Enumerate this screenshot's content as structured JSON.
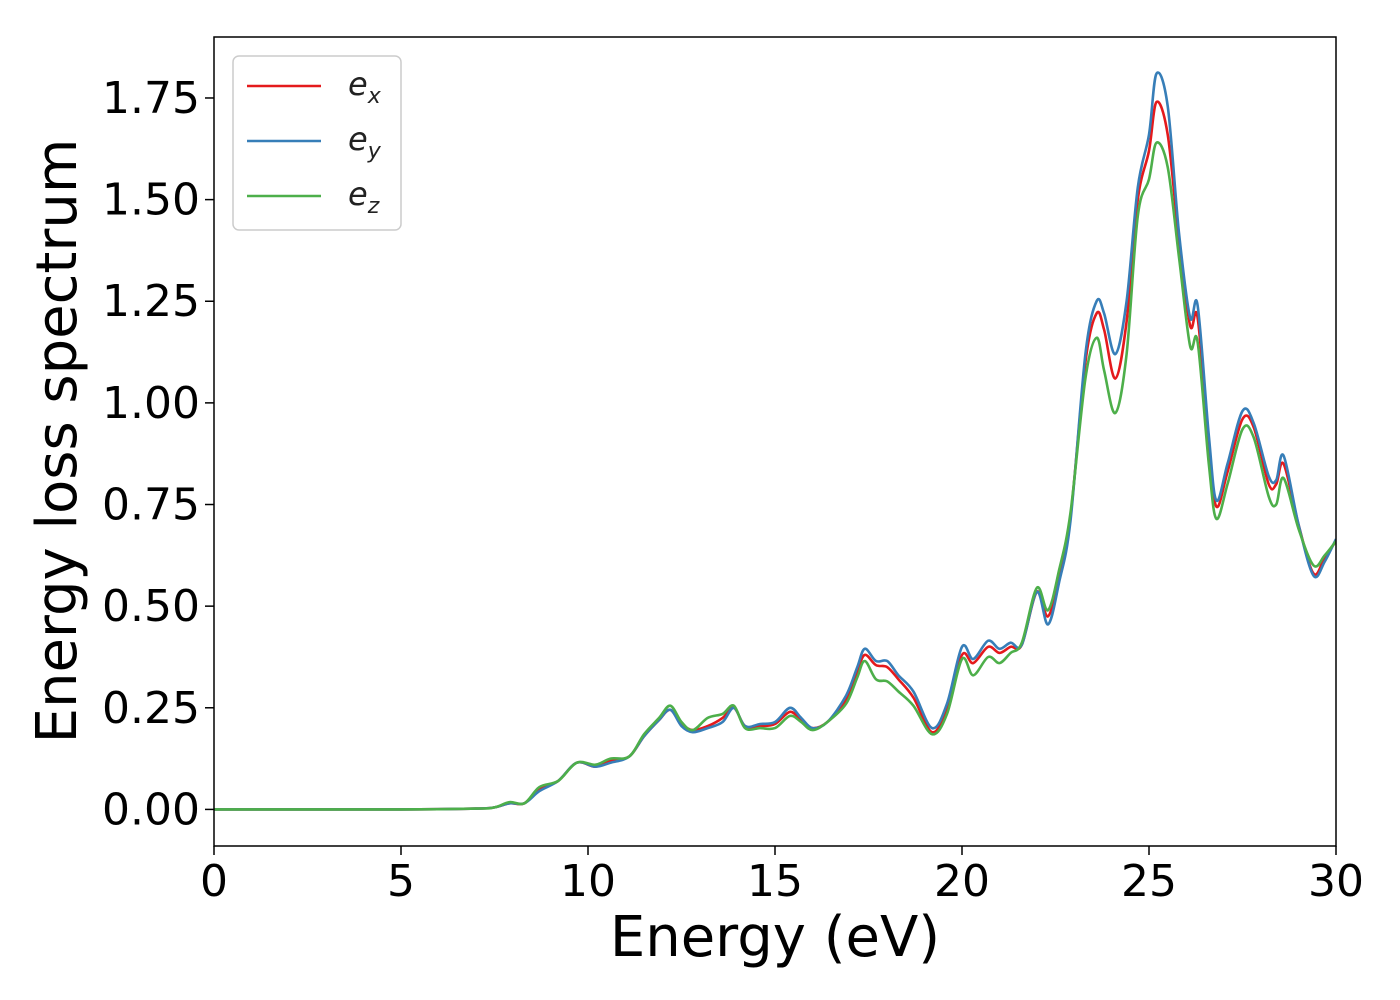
{
  "chart_data": {
    "type": "line",
    "title": "",
    "xlabel": "Energy (eV)",
    "ylabel": "Energy loss spectrum",
    "xlim": [
      0,
      30
    ],
    "ylim": [
      -0.09,
      1.9
    ],
    "xticks": [
      0,
      5,
      10,
      15,
      20,
      25,
      30
    ],
    "xtick_labels": [
      "0",
      "5",
      "10",
      "15",
      "20",
      "25",
      "30"
    ],
    "yticks": [
      0.0,
      0.25,
      0.5,
      0.75,
      1.0,
      1.25,
      1.5,
      1.75
    ],
    "ytick_labels": [
      "0.00",
      "0.25",
      "0.50",
      "0.75",
      "1.00",
      "1.25",
      "1.50",
      "1.75"
    ],
    "grid": false,
    "legend_position": "top-left",
    "series": [
      {
        "name": "e_x",
        "base": "e",
        "sub": "x",
        "color": "#e41a1c",
        "points": [
          [
            0,
            0
          ],
          [
            5,
            0
          ],
          [
            7,
            0.002
          ],
          [
            7.5,
            0.005
          ],
          [
            7.9,
            0.015
          ],
          [
            8.3,
            0.015
          ],
          [
            8.7,
            0.05
          ],
          [
            9.2,
            0.07
          ],
          [
            9.7,
            0.115
          ],
          [
            10.2,
            0.105
          ],
          [
            10.6,
            0.12
          ],
          [
            11.1,
            0.13
          ],
          [
            11.5,
            0.18
          ],
          [
            11.9,
            0.22
          ],
          [
            12.2,
            0.245
          ],
          [
            12.5,
            0.21
          ],
          [
            12.8,
            0.195
          ],
          [
            13.2,
            0.205
          ],
          [
            13.6,
            0.225
          ],
          [
            13.9,
            0.25
          ],
          [
            14.2,
            0.205
          ],
          [
            14.6,
            0.205
          ],
          [
            15.0,
            0.21
          ],
          [
            15.4,
            0.24
          ],
          [
            15.7,
            0.22
          ],
          [
            16.0,
            0.2
          ],
          [
            16.4,
            0.215
          ],
          [
            16.9,
            0.27
          ],
          [
            17.2,
            0.34
          ],
          [
            17.4,
            0.38
          ],
          [
            17.7,
            0.355
          ],
          [
            18.0,
            0.35
          ],
          [
            18.3,
            0.32
          ],
          [
            18.7,
            0.275
          ],
          [
            19.2,
            0.19
          ],
          [
            19.6,
            0.25
          ],
          [
            20.0,
            0.38
          ],
          [
            20.3,
            0.36
          ],
          [
            20.7,
            0.4
          ],
          [
            21.0,
            0.385
          ],
          [
            21.3,
            0.4
          ],
          [
            21.6,
            0.405
          ],
          [
            22.0,
            0.535
          ],
          [
            22.3,
            0.475
          ],
          [
            22.6,
            0.575
          ],
          [
            22.9,
            0.72
          ],
          [
            23.3,
            1.1
          ],
          [
            23.6,
            1.22
          ],
          [
            23.8,
            1.18
          ],
          [
            24.1,
            1.06
          ],
          [
            24.4,
            1.2
          ],
          [
            24.7,
            1.5
          ],
          [
            25.0,
            1.62
          ],
          [
            25.2,
            1.74
          ],
          [
            25.5,
            1.66
          ],
          [
            25.8,
            1.4
          ],
          [
            26.1,
            1.19
          ],
          [
            26.3,
            1.21
          ],
          [
            26.6,
            0.9
          ],
          [
            26.8,
            0.745
          ],
          [
            27.1,
            0.83
          ],
          [
            27.5,
            0.96
          ],
          [
            27.8,
            0.94
          ],
          [
            28.2,
            0.8
          ],
          [
            28.4,
            0.8
          ],
          [
            28.6,
            0.85
          ],
          [
            29.0,
            0.7
          ],
          [
            29.4,
            0.58
          ],
          [
            29.7,
            0.62
          ],
          [
            30,
            0.66
          ]
        ]
      },
      {
        "name": "e_y",
        "base": "e",
        "sub": "y",
        "color": "#377eb8",
        "points": [
          [
            0,
            0
          ],
          [
            5,
            0
          ],
          [
            7,
            0.002
          ],
          [
            7.5,
            0.005
          ],
          [
            7.9,
            0.015
          ],
          [
            8.3,
            0.015
          ],
          [
            8.7,
            0.045
          ],
          [
            9.2,
            0.07
          ],
          [
            9.7,
            0.115
          ],
          [
            10.2,
            0.105
          ],
          [
            10.6,
            0.115
          ],
          [
            11.1,
            0.13
          ],
          [
            11.5,
            0.18
          ],
          [
            11.9,
            0.22
          ],
          [
            12.2,
            0.245
          ],
          [
            12.5,
            0.205
          ],
          [
            12.8,
            0.19
          ],
          [
            13.2,
            0.2
          ],
          [
            13.6,
            0.215
          ],
          [
            13.9,
            0.25
          ],
          [
            14.2,
            0.205
          ],
          [
            14.6,
            0.21
          ],
          [
            15.0,
            0.215
          ],
          [
            15.4,
            0.25
          ],
          [
            15.7,
            0.225
          ],
          [
            16.0,
            0.2
          ],
          [
            16.4,
            0.215
          ],
          [
            16.9,
            0.28
          ],
          [
            17.2,
            0.35
          ],
          [
            17.4,
            0.395
          ],
          [
            17.7,
            0.365
          ],
          [
            18.0,
            0.365
          ],
          [
            18.3,
            0.33
          ],
          [
            18.7,
            0.29
          ],
          [
            19.2,
            0.2
          ],
          [
            19.6,
            0.26
          ],
          [
            20.0,
            0.4
          ],
          [
            20.3,
            0.37
          ],
          [
            20.7,
            0.415
          ],
          [
            21.0,
            0.395
          ],
          [
            21.3,
            0.41
          ],
          [
            21.6,
            0.405
          ],
          [
            22.0,
            0.535
          ],
          [
            22.3,
            0.455
          ],
          [
            22.6,
            0.56
          ],
          [
            22.9,
            0.71
          ],
          [
            23.3,
            1.12
          ],
          [
            23.6,
            1.25
          ],
          [
            23.8,
            1.22
          ],
          [
            24.1,
            1.12
          ],
          [
            24.4,
            1.25
          ],
          [
            24.7,
            1.53
          ],
          [
            25.0,
            1.66
          ],
          [
            25.2,
            1.81
          ],
          [
            25.5,
            1.73
          ],
          [
            25.8,
            1.42
          ],
          [
            26.1,
            1.21
          ],
          [
            26.3,
            1.24
          ],
          [
            26.6,
            0.92
          ],
          [
            26.8,
            0.76
          ],
          [
            27.1,
            0.85
          ],
          [
            27.5,
            0.98
          ],
          [
            27.8,
            0.95
          ],
          [
            28.2,
            0.82
          ],
          [
            28.4,
            0.81
          ],
          [
            28.6,
            0.87
          ],
          [
            29.0,
            0.7
          ],
          [
            29.4,
            0.575
          ],
          [
            29.7,
            0.61
          ],
          [
            30,
            0.665
          ]
        ]
      },
      {
        "name": "e_z",
        "base": "e",
        "sub": "z",
        "color": "#4daf4a",
        "points": [
          [
            0,
            0
          ],
          [
            5,
            0
          ],
          [
            7,
            0.002
          ],
          [
            7.5,
            0.005
          ],
          [
            7.9,
            0.018
          ],
          [
            8.3,
            0.015
          ],
          [
            8.7,
            0.055
          ],
          [
            9.2,
            0.07
          ],
          [
            9.7,
            0.115
          ],
          [
            10.2,
            0.11
          ],
          [
            10.6,
            0.125
          ],
          [
            11.1,
            0.13
          ],
          [
            11.5,
            0.185
          ],
          [
            11.9,
            0.225
          ],
          [
            12.2,
            0.255
          ],
          [
            12.5,
            0.215
          ],
          [
            12.8,
            0.195
          ],
          [
            13.2,
            0.225
          ],
          [
            13.6,
            0.235
          ],
          [
            13.9,
            0.255
          ],
          [
            14.2,
            0.2
          ],
          [
            14.6,
            0.2
          ],
          [
            15.0,
            0.2
          ],
          [
            15.4,
            0.23
          ],
          [
            15.7,
            0.215
          ],
          [
            16.0,
            0.195
          ],
          [
            16.4,
            0.215
          ],
          [
            16.9,
            0.26
          ],
          [
            17.2,
            0.325
          ],
          [
            17.4,
            0.365
          ],
          [
            17.7,
            0.32
          ],
          [
            18.0,
            0.315
          ],
          [
            18.3,
            0.29
          ],
          [
            18.7,
            0.255
          ],
          [
            19.2,
            0.185
          ],
          [
            19.6,
            0.235
          ],
          [
            20.0,
            0.37
          ],
          [
            20.3,
            0.33
          ],
          [
            20.7,
            0.375
          ],
          [
            21.0,
            0.36
          ],
          [
            21.3,
            0.385
          ],
          [
            21.6,
            0.41
          ],
          [
            22.0,
            0.545
          ],
          [
            22.3,
            0.49
          ],
          [
            22.6,
            0.59
          ],
          [
            22.9,
            0.73
          ],
          [
            23.3,
            1.06
          ],
          [
            23.6,
            1.16
          ],
          [
            23.8,
            1.08
          ],
          [
            24.1,
            0.975
          ],
          [
            24.4,
            1.12
          ],
          [
            24.7,
            1.46
          ],
          [
            25.0,
            1.55
          ],
          [
            25.2,
            1.64
          ],
          [
            25.5,
            1.58
          ],
          [
            25.8,
            1.36
          ],
          [
            26.1,
            1.14
          ],
          [
            26.3,
            1.15
          ],
          [
            26.6,
            0.85
          ],
          [
            26.8,
            0.715
          ],
          [
            27.1,
            0.8
          ],
          [
            27.5,
            0.935
          ],
          [
            27.8,
            0.915
          ],
          [
            28.2,
            0.77
          ],
          [
            28.4,
            0.75
          ],
          [
            28.6,
            0.815
          ],
          [
            29.0,
            0.69
          ],
          [
            29.4,
            0.6
          ],
          [
            29.7,
            0.625
          ],
          [
            30,
            0.66
          ]
        ]
      }
    ]
  }
}
